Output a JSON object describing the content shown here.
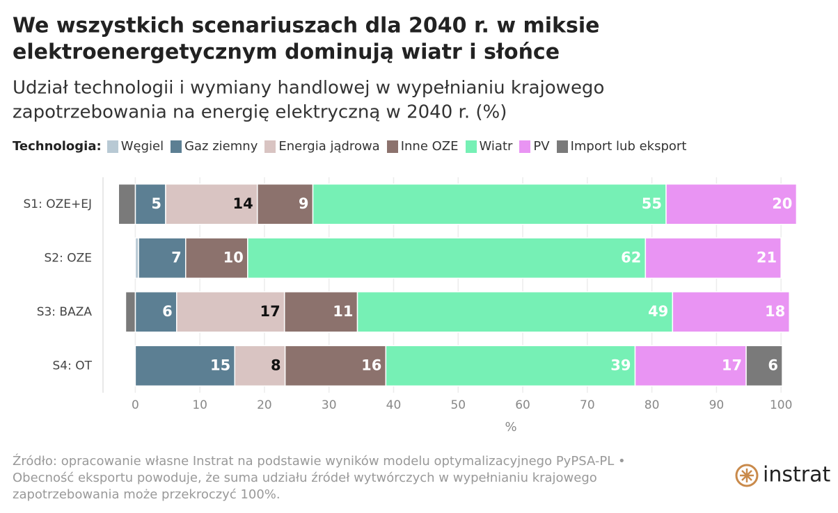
{
  "chart_data": {
    "type": "stacked-barh",
    "title": [
      "We wszystkich scenariuszach dla 2040 r. w miksie",
      "elektroenergetycznym dominują wiatr i słońce"
    ],
    "subtitle": [
      "Udział technologii i wymiany handlowej w wypełnianiu krajowego",
      "zapotrzebowania na energię elektryczną w 2040 r. (%)"
    ],
    "legend_title": "Technologia:",
    "categories": [
      "S1: OZE+EJ",
      "S2: OZE",
      "S3: BAZA",
      "S4: OT"
    ],
    "series": [
      {
        "name": "Węgiel",
        "color": "#b8c9d4",
        "values": [
          0,
          0.5,
          0,
          0
        ]
      },
      {
        "name": "Gaz ziemny",
        "color": "#5c7f93",
        "values": [
          4.7,
          7.3,
          6.4,
          15.4
        ],
        "value_labels": [
          "5",
          "7",
          "6",
          "15"
        ],
        "label_color": "#ffffff"
      },
      {
        "name": "Energia jądrowa",
        "color": "#d9c4c2",
        "values": [
          14.2,
          0,
          16.7,
          7.8
        ],
        "value_labels": [
          "14",
          null,
          "17",
          "8"
        ],
        "label_color": "#111111"
      },
      {
        "name": "Inne OZE",
        "color": "#8c726d",
        "values": [
          8.6,
          9.6,
          11.3,
          15.6
        ],
        "value_labels": [
          "9",
          "10",
          "11",
          "16"
        ],
        "label_color": "#ffffff"
      },
      {
        "name": "Wiatr",
        "color": "#76f0b5",
        "values": [
          54.7,
          61.6,
          48.8,
          38.6
        ],
        "value_labels": [
          "55",
          "62",
          "49",
          "39"
        ],
        "label_color": "#ffffff"
      },
      {
        "name": "PV",
        "color": "#e994f3",
        "values": [
          20.2,
          21.0,
          18.1,
          17.2
        ],
        "value_labels": [
          "20",
          "21",
          "18",
          "17"
        ],
        "label_color": "#ffffff"
      },
      {
        "name": "Import lub eksport",
        "color": "#7a7a7a",
        "values": [
          -2.6,
          0,
          -1.5,
          5.6
        ],
        "value_labels": [
          null,
          null,
          null,
          "6"
        ],
        "label_color": "#ffffff"
      }
    ],
    "xlim": [
      -5,
      103
    ],
    "xticks": [
      0,
      10,
      20,
      30,
      40,
      50,
      60,
      70,
      80,
      90,
      100
    ],
    "xlabel": "%",
    "grid": true,
    "source": [
      "Źródło: opracowanie własne Instrat na podstawie wyników modelu optymalizacyjnego PyPSA-PL •",
      "Obecność eksportu powoduje, że suma udziału źródeł wytwórczych w wypełnianiu krajowego",
      "zapotrzebowania może przekroczyć 100%."
    ],
    "logo": "instrat"
  }
}
